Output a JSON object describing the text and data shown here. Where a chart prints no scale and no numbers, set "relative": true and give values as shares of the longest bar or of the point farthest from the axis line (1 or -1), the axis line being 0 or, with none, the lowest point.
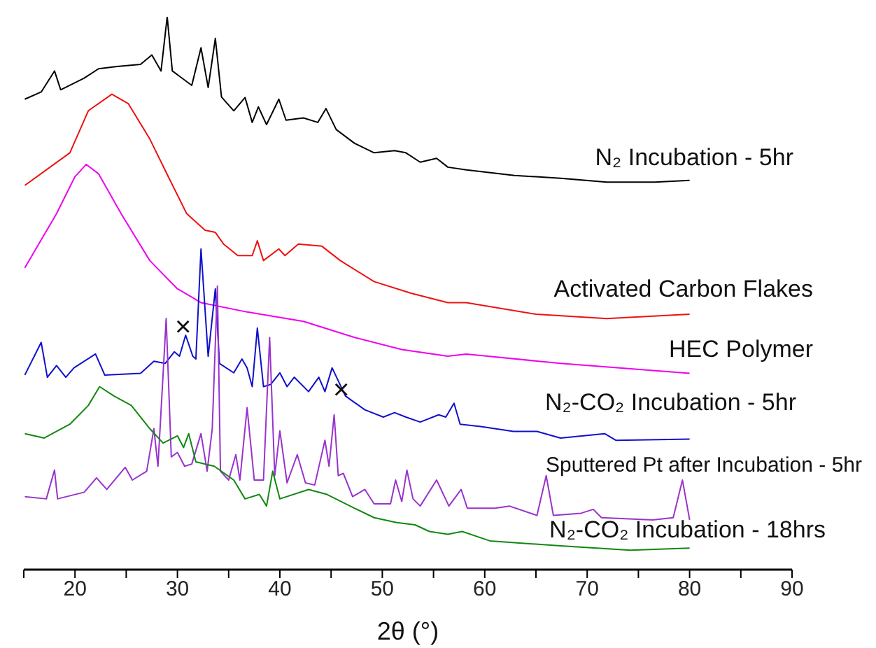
{
  "chart_data": {
    "type": "line",
    "relative": true,
    "xlabel": "2θ (°)",
    "xlim": [
      15,
      90
    ],
    "xticks": [
      {
        "value": 15,
        "label": null
      },
      20,
      {
        "value": 25,
        "label": null
      },
      30,
      {
        "value": 35,
        "label": null
      },
      40,
      {
        "value": 45,
        "label": null
      },
      50,
      {
        "value": 55,
        "label": null
      },
      60,
      {
        "value": 65,
        "label": null
      },
      70,
      {
        "value": 75,
        "label": null
      },
      80,
      {
        "value": 85,
        "label": null
      },
      90
    ],
    "tick_labels": "x",
    "legend": false,
    "grid": false,
    "marker": "none",
    "line_style": "solid",
    "series": [
      {
        "name": "N₂ Incubation - 5hr",
        "color": "#000000",
        "x": [
          15.1,
          16.7,
          18.0,
          18.6,
          20.9,
          22.3,
          24.1,
          26.4,
          27.5,
          28.4,
          29.0,
          29.5,
          31.4,
          32.3,
          33.0,
          33.7,
          34.3,
          35.5,
          36.6,
          37.3,
          37.9,
          38.7,
          39.9,
          40.6,
          42.3,
          43.7,
          44.5,
          45.5,
          47.3,
          49.2,
          51.2,
          52.3,
          53.7,
          55.3,
          56.4,
          58.2,
          62.9,
          67.4,
          71.9,
          76.6,
          80
        ],
        "values": [
          0.851,
          0.864,
          0.902,
          0.868,
          0.889,
          0.906,
          0.91,
          0.914,
          0.931,
          0.902,
          1,
          0.902,
          0.876,
          0.944,
          0.872,
          0.961,
          0.855,
          0.83,
          0.854,
          0.809,
          0.837,
          0.805,
          0.851,
          0.813,
          0.817,
          0.809,
          0.834,
          0.796,
          0.771,
          0.754,
          0.758,
          0.754,
          0.737,
          0.744,
          0.728,
          0.723,
          0.713,
          0.708,
          0.701,
          0.701,
          0.704
        ]
      },
      {
        "name": "Activated Carbon Flakes",
        "color": "#ee1111",
        "x": [
          15.1,
          19.5,
          21.3,
          23.6,
          25.2,
          27.3,
          29.1,
          30.9,
          32.7,
          33.7,
          34.5,
          35.9,
          37.3,
          37.8,
          38.4,
          39.9,
          40.5,
          41.8,
          44.1,
          45.9,
          49.2,
          52.8,
          56.4,
          58.2,
          65,
          71.9,
          80
        ],
        "values": [
          0.695,
          0.754,
          0.83,
          0.86,
          0.843,
          0.779,
          0.711,
          0.644,
          0.614,
          0.61,
          0.589,
          0.568,
          0.568,
          0.595,
          0.559,
          0.58,
          0.568,
          0.589,
          0.585,
          0.559,
          0.521,
          0.5,
          0.483,
          0.483,
          0.462,
          0.454,
          0.462
        ]
      },
      {
        "name": "HEC Polymer",
        "color": "#ee00ee",
        "x": [
          15.1,
          18.2,
          20.0,
          21.1,
          22.3,
          24.5,
          27.3,
          30.0,
          32.3,
          36.8,
          42.3,
          47.3,
          51.9,
          56.4,
          58.2,
          67.4,
          80
        ],
        "values": [
          0.546,
          0.644,
          0.711,
          0.733,
          0.716,
          0.644,
          0.559,
          0.508,
          0.483,
          0.466,
          0.449,
          0.42,
          0.398,
          0.386,
          0.39,
          0.373,
          0.355
        ]
      },
      {
        "name": "N₂-CO₂ Incubation - 5hr",
        "color": "#1010cc",
        "x": [
          15.1,
          16.7,
          17.3,
          18.2,
          19.1,
          19.9,
          22.0,
          22.9,
          26.4,
          27.7,
          28.8,
          29.7,
          30.2,
          30.8,
          31.5,
          31.8,
          32.3,
          33.0,
          33.7,
          34.1,
          35.5,
          36.3,
          36.8,
          37.3,
          37.8,
          38.4,
          39.1,
          40.0,
          40.7,
          41.4,
          42.8,
          43.8,
          44.4,
          45.1,
          46.4,
          48.3,
          50.1,
          51.2,
          52.3,
          53.7,
          55.5,
          56.2,
          57.0,
          57.6,
          59.6,
          62.8,
          65.1,
          67.4,
          71.7,
          72.8,
          80
        ],
        "values": [
          0.352,
          0.411,
          0.348,
          0.369,
          0.348,
          0.365,
          0.39,
          0.352,
          0.355,
          0.377,
          0.373,
          0.394,
          0.386,
          0.424,
          0.386,
          0.381,
          0.58,
          0.386,
          0.508,
          0.373,
          0.356,
          0.381,
          0.365,
          0.331,
          0.437,
          0.331,
          0.335,
          0.356,
          0.331,
          0.348,
          0.322,
          0.348,
          0.322,
          0.365,
          0.314,
          0.289,
          0.276,
          0.284,
          0.276,
          0.267,
          0.28,
          0.276,
          0.301,
          0.263,
          0.259,
          0.25,
          0.25,
          0.238,
          0.246,
          0.234,
          0.236
        ]
      },
      {
        "name": "Sputtered Pt after Incubation - 5hr",
        "color": "#9933cc",
        "x": [
          15.1,
          17.2,
          18.0,
          18.3,
          20.9,
          22.1,
          23.1,
          24.9,
          25.6,
          27.0,
          27.7,
          28.1,
          28.9,
          29.4,
          30.0,
          30.7,
          31.4,
          32.3,
          32.9,
          33.4,
          33.9,
          34.2,
          35.0,
          35.7,
          36.1,
          36.8,
          37.5,
          38.4,
          39.0,
          39.5,
          40.0,
          40.7,
          41.7,
          42.5,
          43.4,
          44.4,
          44.8,
          45.3,
          45.7,
          46.2,
          47.1,
          48.3,
          49.2,
          50.8,
          51.3,
          51.9,
          52.4,
          53.0,
          53.7,
          55.3,
          56.5,
          57.7,
          58.3,
          61.0,
          62.4,
          65.1,
          66.0,
          66.7,
          69.4,
          70.6,
          71.4,
          76.4,
          78.4,
          79.3,
          79.8,
          80
        ],
        "values": [
          0.132,
          0.128,
          0.18,
          0.128,
          0.14,
          0.166,
          0.145,
          0.185,
          0.162,
          0.178,
          0.255,
          0.187,
          0.454,
          0.204,
          0.212,
          0.187,
          0.191,
          0.246,
          0.178,
          0.255,
          0.513,
          0.178,
          0.162,
          0.208,
          0.162,
          0.293,
          0.162,
          0.162,
          0.42,
          0.17,
          0.251,
          0.157,
          0.208,
          0.157,
          0.153,
          0.234,
          0.187,
          0.28,
          0.17,
          0.174,
          0.132,
          0.145,
          0.119,
          0.119,
          0.162,
          0.123,
          0.18,
          0.128,
          0.115,
          0.162,
          0.115,
          0.145,
          0.111,
          0.111,
          0.115,
          0.098,
          0.17,
          0.098,
          0.102,
          0.109,
          0.094,
          0.09,
          0.094,
          0.162,
          0.111,
          0.09
        ]
      },
      {
        "name": "N₂-CO₂ Incubation - 18hrs",
        "color": "#118811",
        "x": [
          15.1,
          17.0,
          19.5,
          21.3,
          22.4,
          23.8,
          25.5,
          27.3,
          28.6,
          30.0,
          30.6,
          31.1,
          31.8,
          33.6,
          35.5,
          36.6,
          38.0,
          38.7,
          39.3,
          40.0,
          42.8,
          44.6,
          47.3,
          49.2,
          51.4,
          53.2,
          54.6,
          56.4,
          57.8,
          60.5,
          67.4,
          74.2,
          80
        ],
        "values": [
          0.246,
          0.238,
          0.263,
          0.297,
          0.331,
          0.314,
          0.297,
          0.255,
          0.229,
          0.242,
          0.221,
          0.246,
          0.195,
          0.187,
          0.162,
          0.128,
          0.136,
          0.115,
          0.178,
          0.128,
          0.145,
          0.136,
          0.111,
          0.094,
          0.085,
          0.081,
          0.069,
          0.064,
          0.069,
          0.052,
          0.043,
          0.035,
          0.039
        ]
      }
    ],
    "annotations": [
      "×",
      "×"
    ]
  }
}
